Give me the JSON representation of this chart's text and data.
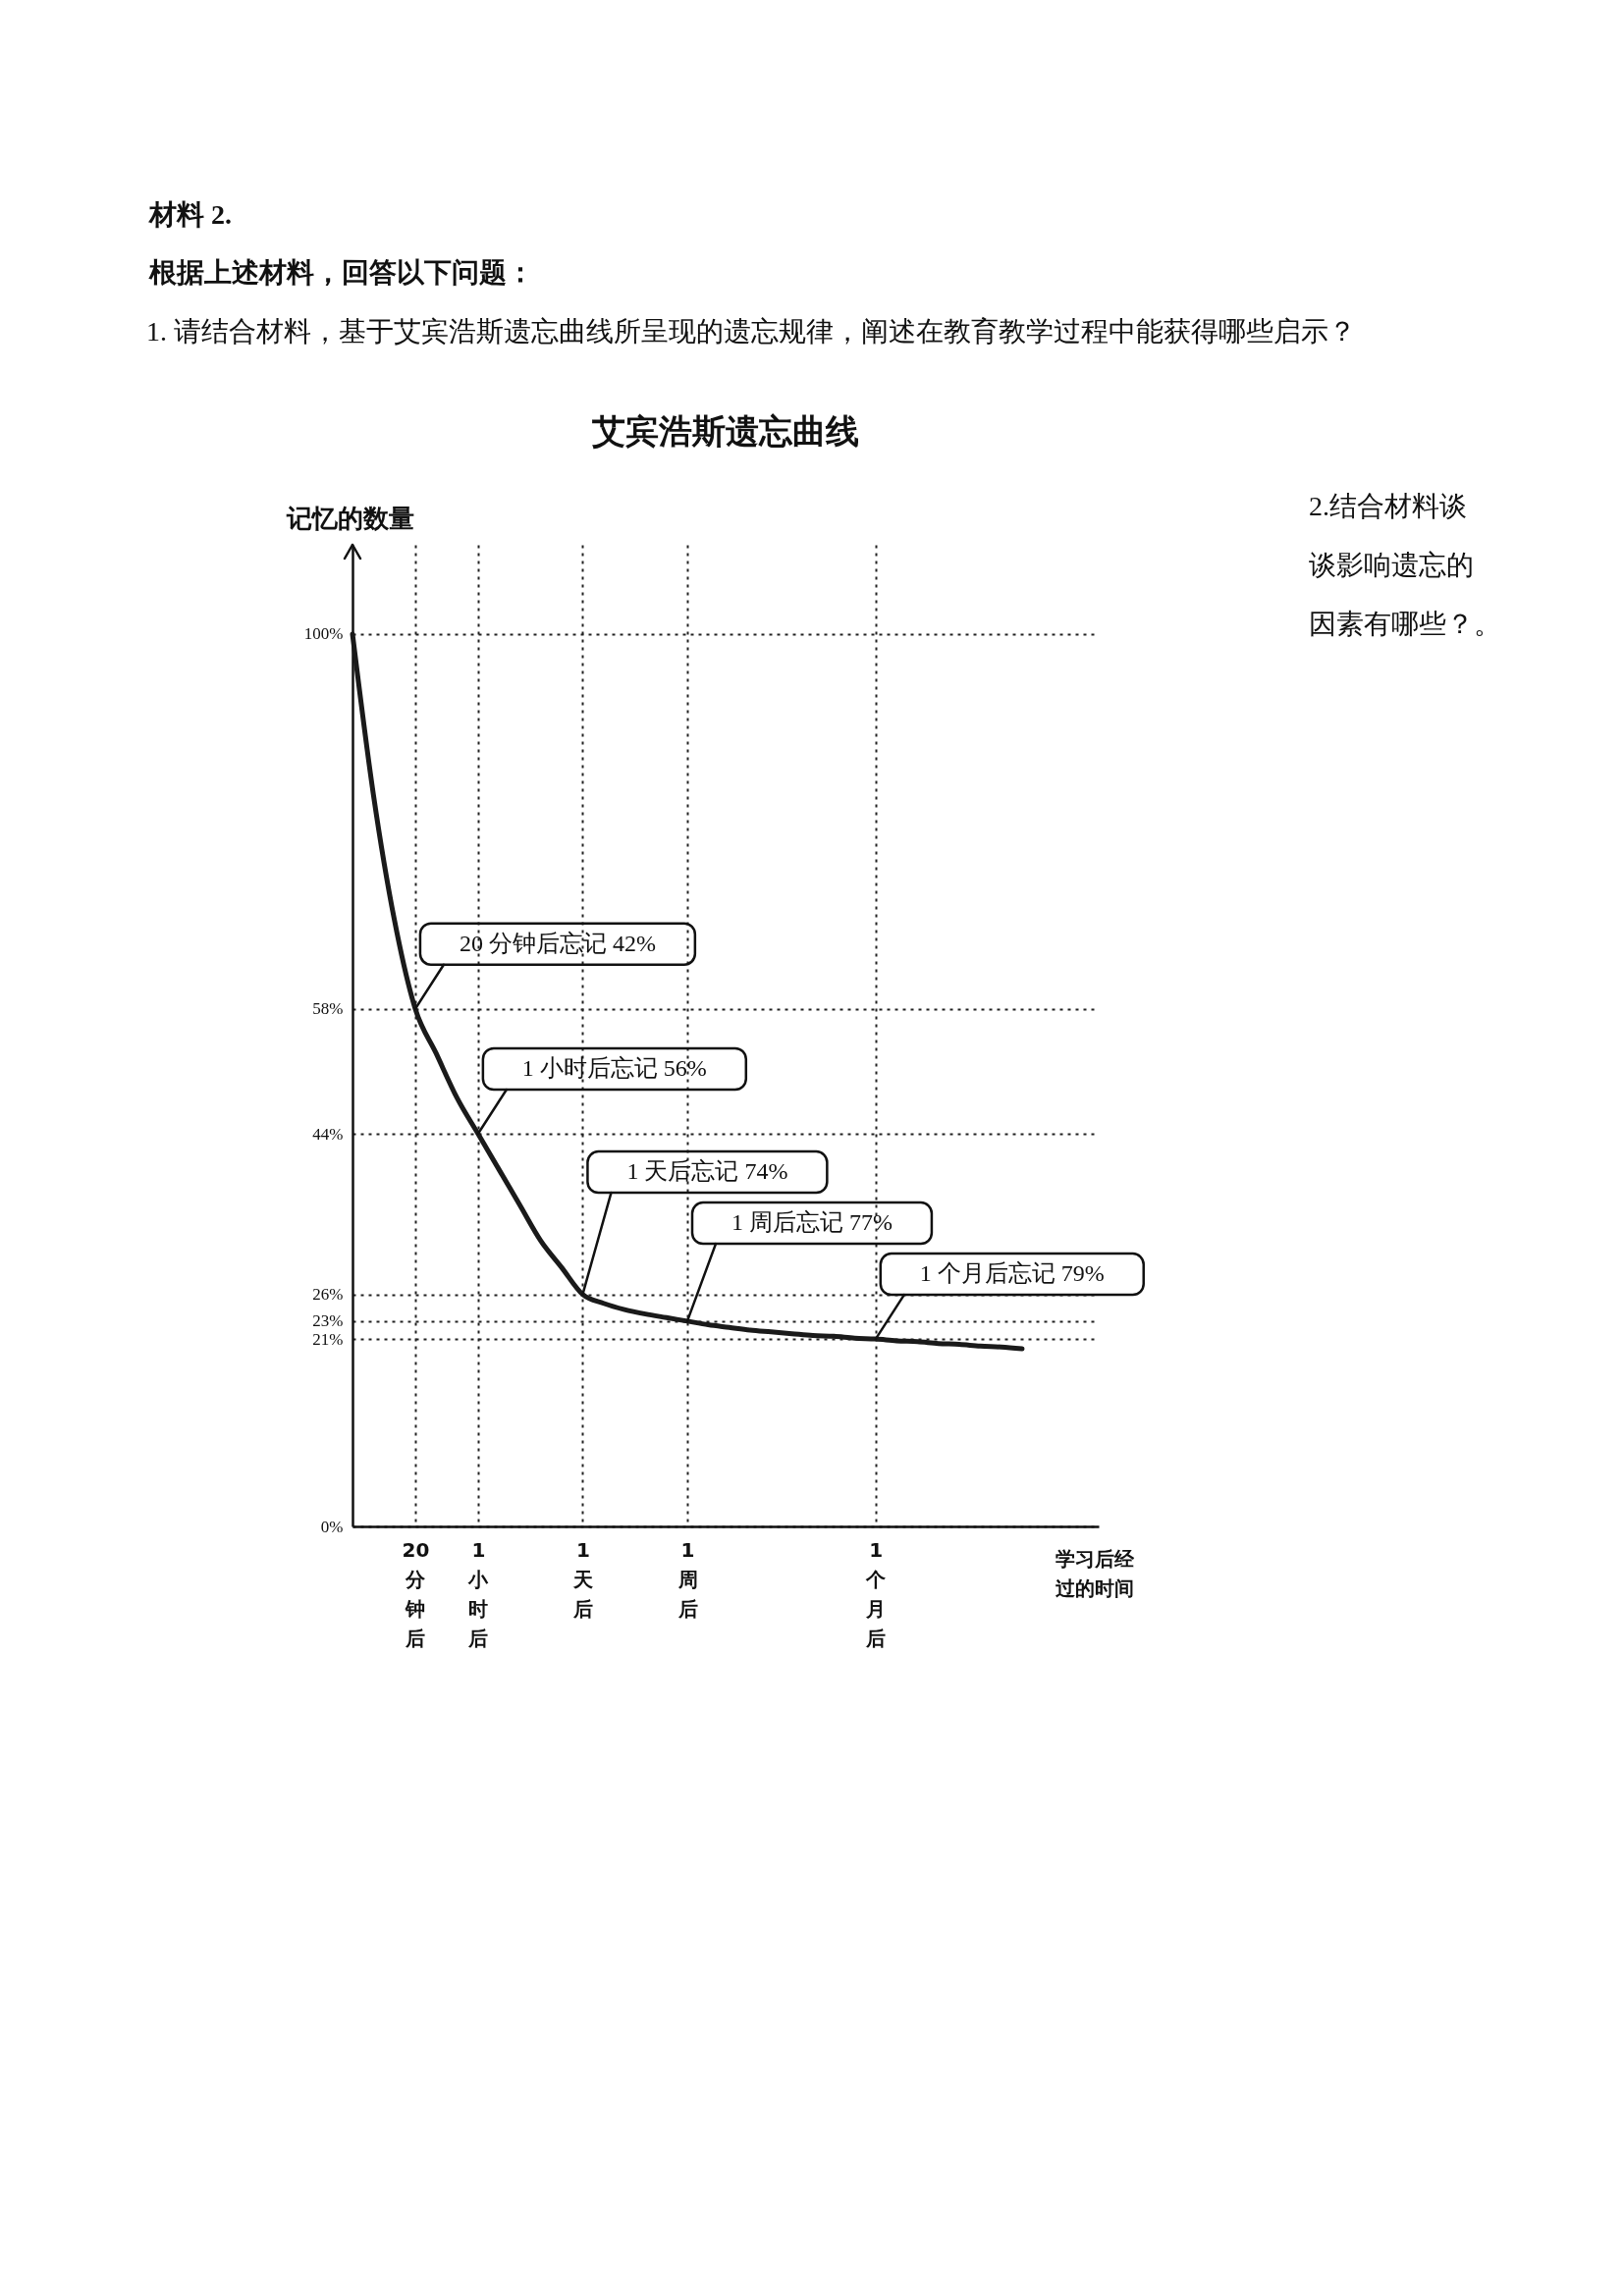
{
  "chart_data": {
    "type": "line",
    "title": "艾宾浩斯遗忘曲线",
    "xlabel": "学习后经过的时间",
    "ylabel": "记忆的数量",
    "categories": [
      null,
      null,
      null,
      "20分钟后",
      null,
      null,
      "1小时后",
      null,
      null,
      null,
      null,
      "1天后",
      null,
      null,
      null,
      null,
      "1周后",
      null,
      null,
      null,
      null,
      null,
      null,
      null,
      null,
      "1个月后",
      null,
      null,
      null,
      null,
      null,
      null,
      null
    ],
    "series": [
      {
        "color": "#1a1a1a",
        "values": [
          100,
          82,
          68,
          58,
          53,
          48,
          44,
          40,
          36,
          32,
          29,
          26,
          25,
          24.3,
          23.8,
          23.4,
          23,
          22.6,
          22.3,
          22,
          21.8,
          21.6,
          21.4,
          21.3,
          21.1,
          21,
          20.8,
          20.7,
          20.5,
          20.4,
          20.2,
          20.1,
          19.9
        ]
      }
    ],
    "ylim": [
      0,
      110
    ],
    "yticks": [
      {
        "value": 0,
        "label": "0%"
      },
      {
        "value": 21,
        "label": "21%"
      },
      {
        "value": 23,
        "label": "23%"
      },
      {
        "value": 26,
        "label": "26%"
      },
      {
        "value": 44,
        "label": "44%"
      },
      {
        "value": 58,
        "label": "58%"
      },
      {
        "value": 100,
        "label": "100%"
      }
    ],
    "grid": true,
    "annotations": [
      "材料 2.",
      "根据上述材料，回答以下问题：",
      "1. 请结合材料，基于艾宾浩斯遗忘曲线所呈现的遗忘规律，阐述在教育教学过程中能获得哪些启示？",
      "2.结合材料谈谈影响遗忘的因素有哪些？。",
      {
        "text": "20 分钟后忘记 42%",
        "x": "20分钟后",
        "y": 58
      },
      {
        "text": "1 小时后忘记 56%",
        "x": "1小时后",
        "y": 44
      },
      {
        "text": "1 天后忘记 74%",
        "x": "1天后",
        "y": 26
      },
      {
        "text": "1 周后忘记 77%",
        "x": "1周后",
        "y": 23
      },
      {
        "text": "1 个月后忘记 79%",
        "x": "1个月后",
        "y": 21
      }
    ]
  }
}
